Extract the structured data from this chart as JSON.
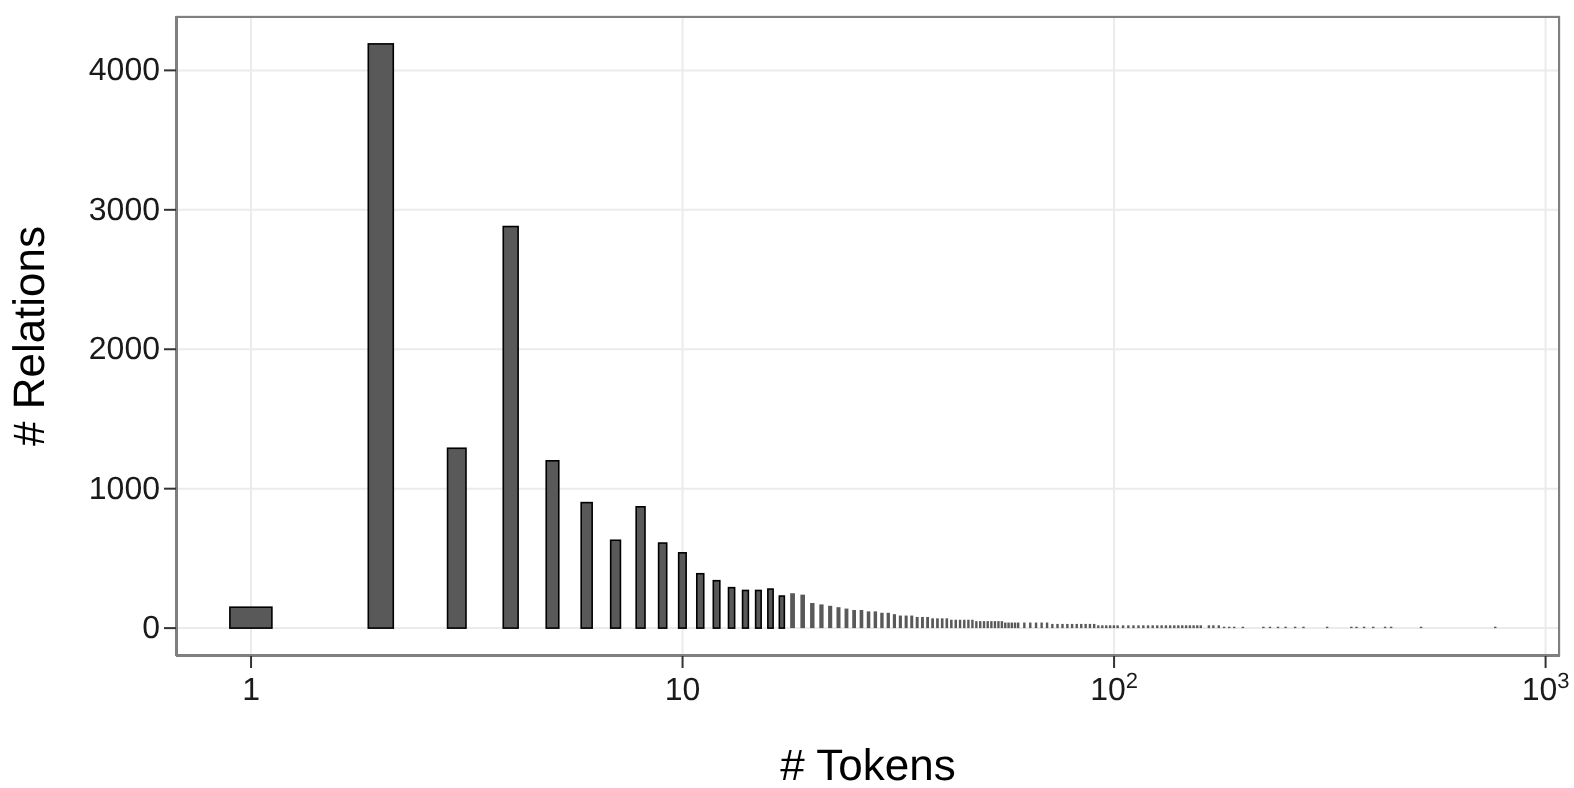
{
  "chart_data": {
    "type": "bar",
    "xlabel": "# Tokens",
    "ylabel": "# Relations",
    "log": "x",
    "grid": true,
    "color": "#595959",
    "x": [
      1,
      2,
      3,
      4,
      5,
      6,
      7,
      8,
      9,
      10,
      11,
      12,
      13,
      14,
      15,
      16,
      17,
      18,
      19,
      20,
      21,
      22,
      23,
      24,
      25,
      26,
      27,
      28,
      29,
      30,
      31,
      32,
      33,
      34,
      35,
      36,
      37,
      38,
      39,
      40,
      41,
      42,
      43,
      44,
      45,
      46,
      47,
      48,
      49,
      50,
      51,
      52,
      53,
      54,
      55,
      56,
      57,
      58,
      59,
      60,
      62,
      64,
      66,
      68,
      70,
      72,
      74,
      76,
      78,
      80,
      82,
      84,
      86,
      88,
      90,
      92,
      94,
      96,
      98,
      100,
      102,
      105,
      108,
      111,
      114,
      117,
      120,
      123,
      126,
      129,
      132,
      135,
      138,
      141,
      144,
      147,
      150,
      153,
      156,
      159,
      166,
      170,
      175,
      180,
      185,
      190,
      199,
      222,
      230,
      240,
      250,
      263,
      275,
      312,
      355,
      365,
      380,
      399,
      425,
      439,
      515,
      765
    ],
    "values": [
      150,
      4190,
      1290,
      2880,
      1200,
      900,
      630,
      870,
      610,
      540,
      390,
      340,
      290,
      270,
      270,
      280,
      230,
      250,
      240,
      180,
      170,
      160,
      150,
      140,
      130,
      130,
      120,
      120,
      110,
      110,
      100,
      90,
      90,
      90,
      80,
      80,
      80,
      70,
      70,
      70,
      70,
      60,
      60,
      60,
      60,
      60,
      60,
      50,
      50,
      50,
      50,
      50,
      50,
      50,
      50,
      40,
      40,
      40,
      40,
      40,
      40,
      40,
      40,
      40,
      40,
      30,
      30,
      30,
      30,
      30,
      30,
      30,
      30,
      30,
      30,
      20,
      20,
      20,
      20,
      20,
      20,
      20,
      20,
      20,
      20,
      20,
      20,
      20,
      20,
      20,
      20,
      20,
      20,
      20,
      20,
      20,
      20,
      20,
      20,
      20,
      20,
      20,
      20,
      10,
      10,
      10,
      10,
      10,
      10,
      10,
      10,
      10,
      10,
      10,
      10,
      10,
      10,
      10,
      10,
      10,
      10,
      10
    ],
    "xlim": [
      0.67,
      1080
    ],
    "xticks": [
      1,
      10,
      {
        "value": 100,
        "label": "10$^{2}$"
      },
      {
        "value": 1000,
        "label": "10$^{3}$"
      }
    ],
    "ylim": [
      -200,
      4390
    ],
    "yticks": [
      0,
      1000,
      2000,
      3000,
      4000
    ]
  }
}
